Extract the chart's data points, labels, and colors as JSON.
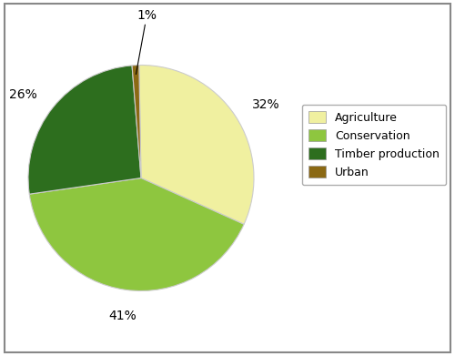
{
  "labels": [
    "Agriculture",
    "Conservation",
    "Timber production",
    "Urban"
  ],
  "values": [
    32,
    41,
    26,
    1
  ],
  "colors": [
    "#f0f0a0",
    "#8ec63f",
    "#2d6e1e",
    "#8b6914"
  ],
  "legend_labels": [
    "Agriculture",
    "Conservation",
    "Timber production",
    "Urban"
  ],
  "background_color": "#ffffff",
  "label_fontsize": 10,
  "legend_fontsize": 9,
  "startangle": 91,
  "pct_distance": 1.18
}
